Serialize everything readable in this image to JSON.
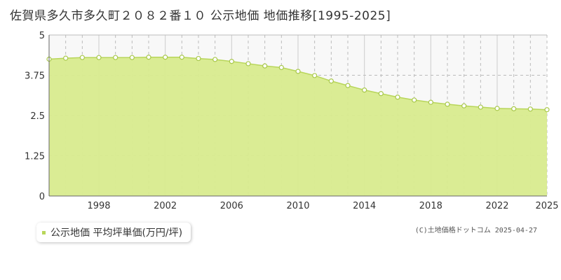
{
  "header": {
    "title": "佐賀県多久市多久町２０８２番１０ 公示地価 地価推移[1995-2025]"
  },
  "legend": {
    "label": "公示地価 平均坪単価(万円/坪)"
  },
  "footer": {
    "copyright": "(C)土地価格ドットコム 2025-04-27"
  },
  "colors": {
    "area_fill": "#d8eb8e",
    "line": "#b8d65a",
    "marker_stroke": "#a8c84a",
    "upper_fill": "#f8f8f8",
    "grid_solid": "#cccccc",
    "grid_dashed": "#bbbbbb",
    "legend_swatch": "#b8d65a"
  },
  "chart_data": {
    "type": "area",
    "x": [
      1995,
      1996,
      1997,
      1998,
      1999,
      2000,
      2001,
      2002,
      2003,
      2004,
      2005,
      2006,
      2007,
      2008,
      2009,
      2010,
      2011,
      2012,
      2013,
      2014,
      2015,
      2016,
      2017,
      2018,
      2019,
      2020,
      2021,
      2022,
      2023,
      2024,
      2025
    ],
    "series": [
      {
        "values": [
          4.25,
          4.28,
          4.3,
          4.3,
          4.3,
          4.3,
          4.31,
          4.31,
          4.31,
          4.27,
          4.24,
          4.18,
          4.11,
          4.04,
          3.99,
          3.87,
          3.74,
          3.57,
          3.43,
          3.29,
          3.18,
          3.07,
          2.98,
          2.91,
          2.85,
          2.8,
          2.76,
          2.72,
          2.71,
          2.7,
          2.68
        ]
      }
    ],
    "xlim": [
      1995,
      2025
    ],
    "ylim": [
      0,
      5
    ],
    "yticks": [
      0,
      1.25,
      2.5,
      3.75,
      5
    ],
    "ytick_labels": [
      "0",
      "1.25",
      "2.5",
      "3.75",
      "5"
    ],
    "xtick_labels": [
      "1998",
      "2002",
      "2006",
      "2010",
      "2014",
      "2018",
      "2022",
      "2025"
    ],
    "xtick_values": [
      1998,
      2002,
      2006,
      2010,
      2014,
      2018,
      2022,
      2025
    ],
    "grid": true
  }
}
